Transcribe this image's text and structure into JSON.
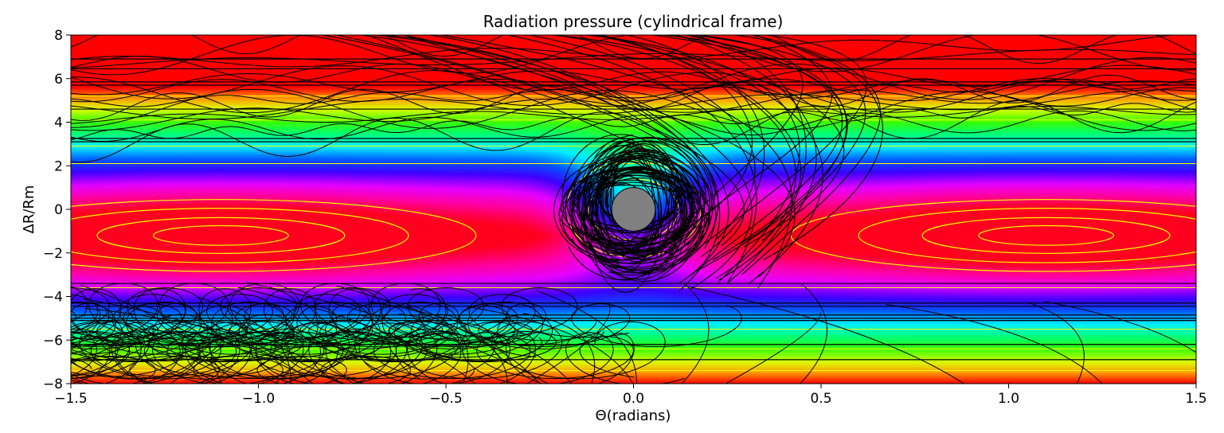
{
  "chart_data": {
    "type": "heatmap",
    "title": "Radiation pressure (cylindrical frame)",
    "xlabel": "Θ(radians)",
    "ylabel": "ΔR/Rm",
    "xlim": [
      -1.5,
      1.5
    ],
    "ylim": [
      -8,
      8
    ],
    "x_ticks": [
      -1.5,
      -1.0,
      -0.5,
      0.0,
      0.5,
      1.0,
      1.5
    ],
    "x_tick_labels": [
      "−1.5",
      "−1.0",
      "−0.5",
      "0.0",
      "0.5",
      "1.0",
      "1.5"
    ],
    "y_ticks": [
      -8,
      -6,
      -4,
      -2,
      0,
      2,
      4,
      6,
      8
    ],
    "y_tick_labels": [
      "−8",
      "−6",
      "−4",
      "−2",
      "0",
      "2",
      "4",
      "6",
      "8"
    ],
    "colormap": "gist_rainbow",
    "field": {
      "note": "potential-like field: low (magenta/red) in two side wells near ΔR≈-1.2, high (green/yellow/red) toward |ΔR|=8",
      "well_centers_x": [
        -1.1,
        1.1
      ],
      "well_center_y": -1.2,
      "central_body": {
        "x": 0.0,
        "y": 0.0,
        "radius_y": 1.0,
        "color": "#808080"
      }
    },
    "contour_color": "#ffff00",
    "horizontal_lines_y": [
      6.9,
      6.45,
      5.85,
      5.7,
      4.6,
      3.25,
      3.1,
      -3.4,
      -4.3,
      -4.45,
      -4.85,
      -5.0,
      -5.1,
      -6.2,
      -6.9
    ],
    "trajectory_color": "#000000"
  }
}
